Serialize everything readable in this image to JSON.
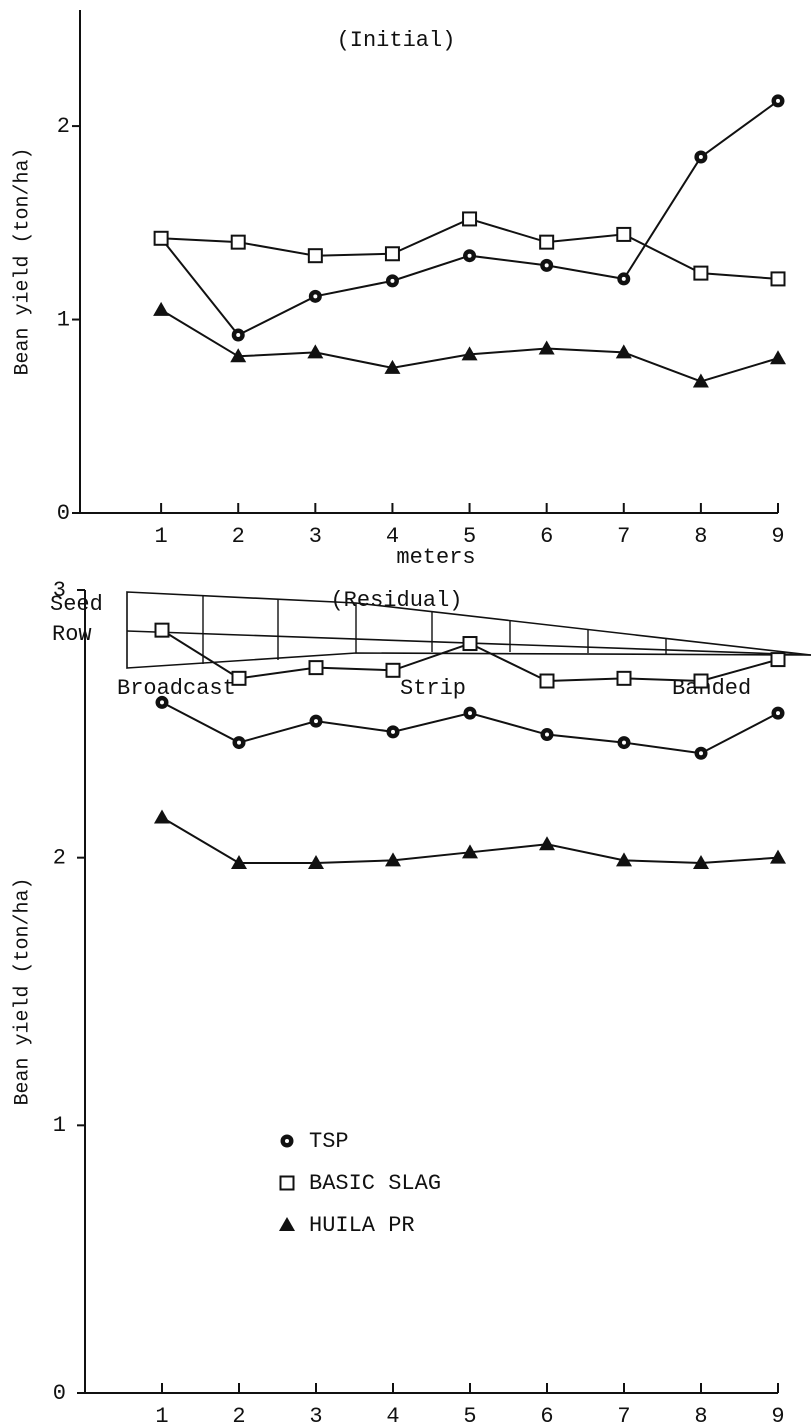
{
  "chart_data": [
    {
      "type": "line",
      "title": "(Initial)",
      "ylabel": "Bean yield (ton/ha)",
      "xlabel": "meters",
      "x": [
        1,
        2,
        3,
        4,
        5,
        6,
        7,
        8,
        9
      ],
      "xlim": [
        0,
        9
      ],
      "xticks": [
        1,
        2,
        3,
        4,
        5,
        6,
        7,
        8,
        9
      ],
      "ylim": [
        0,
        2.6
      ],
      "yticks": [
        0,
        1,
        2
      ],
      "grid": false,
      "series": [
        {
          "marker": "circle",
          "color": "#111111",
          "values": [
            1.42,
            0.92,
            1.12,
            1.2,
            1.33,
            1.28,
            1.21,
            1.84,
            2.13
          ]
        },
        {
          "marker": "square",
          "color": "#111111",
          "values": [
            1.42,
            1.4,
            1.33,
            1.34,
            1.52,
            1.4,
            1.44,
            1.24,
            1.21
          ]
        },
        {
          "marker": "triangle",
          "color": "#111111",
          "values": [
            1.05,
            0.81,
            0.83,
            0.75,
            0.82,
            0.85,
            0.83,
            0.68,
            0.8
          ]
        }
      ]
    },
    {
      "type": "line",
      "title": "(Residual)",
      "ylabel": "Bean yield (ton/ha)",
      "xlabel": "meters",
      "x": [
        1,
        2,
        3,
        4,
        5,
        6,
        7,
        8,
        9
      ],
      "xlim": [
        0,
        9
      ],
      "xticks": [
        1,
        2,
        3,
        4,
        5,
        6,
        7,
        8,
        9
      ],
      "ylim": [
        0,
        3
      ],
      "yticks": [
        0,
        1,
        2,
        3
      ],
      "grid": false,
      "legend": "center-left",
      "series": [
        {
          "name": "TSP",
          "marker": "circle",
          "color": "#111111",
          "values": [
            2.58,
            2.43,
            2.51,
            2.47,
            2.54,
            2.46,
            2.43,
            2.39,
            2.54
          ]
        },
        {
          "name": "BASIC SLAG",
          "marker": "square",
          "color": "#111111",
          "values": [
            2.85,
            2.67,
            2.71,
            2.7,
            2.8,
            2.66,
            2.67,
            2.66,
            2.74
          ]
        },
        {
          "name": "HUILA PR",
          "marker": "triangle",
          "color": "#111111",
          "values": [
            2.15,
            1.98,
            1.98,
            1.99,
            2.02,
            2.05,
            1.99,
            1.98,
            2.0
          ]
        }
      ]
    }
  ],
  "diagram": {
    "row_labels": [
      "Seed",
      "Row"
    ],
    "placement_labels": [
      "Broadcast",
      "Strip",
      "Banded"
    ]
  }
}
